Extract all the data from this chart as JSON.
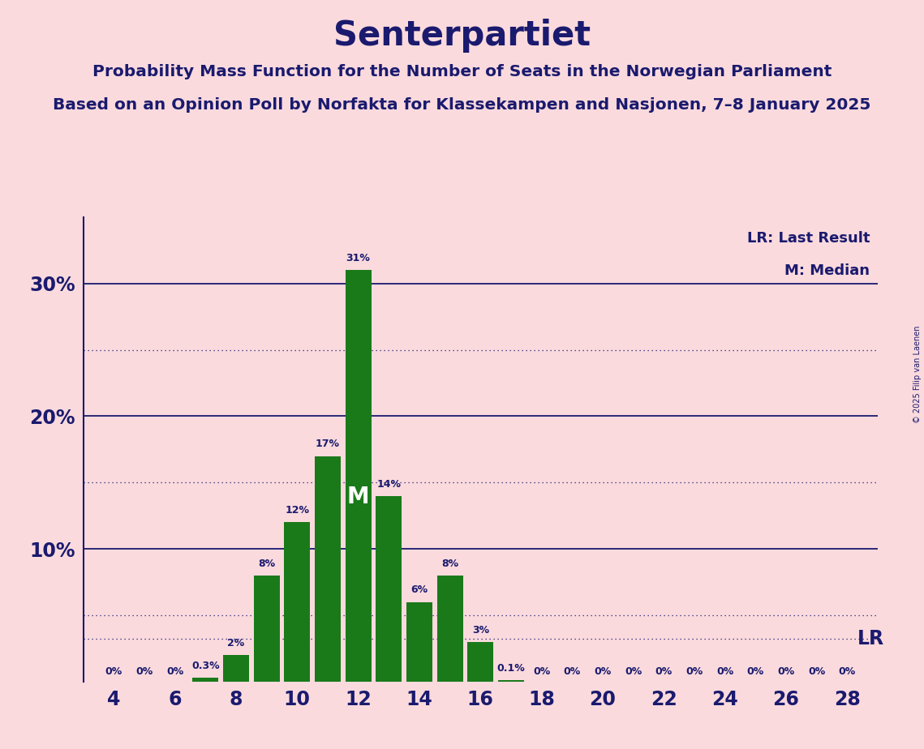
{
  "title": "Senterpartiet",
  "subtitle1": "Probability Mass Function for the Number of Seats in the Norwegian Parliament",
  "subtitle2": "Based on an Opinion Poll by Norfakta for Klassekampen and Nasjonen, 7–8 January 2025",
  "copyright": "© 2025 Filip van Laenen",
  "legend_lr": "LR: Last Result",
  "legend_m": "M: Median",
  "background_color": "#fadadd",
  "bar_color": "#1a7a1a",
  "text_color": "#1a1a6e",
  "seats": [
    4,
    5,
    6,
    7,
    8,
    9,
    10,
    11,
    12,
    13,
    14,
    15,
    16,
    17,
    18,
    19,
    20,
    21,
    22,
    23,
    24,
    25,
    26,
    27,
    28
  ],
  "probabilities": [
    0.0,
    0.0,
    0.0,
    0.3,
    2.0,
    8.0,
    12.0,
    17.0,
    31.0,
    14.0,
    6.0,
    8.0,
    3.0,
    0.1,
    0.0,
    0.0,
    0.0,
    0.0,
    0.0,
    0.0,
    0.0,
    0.0,
    0.0,
    0.0,
    0.0
  ],
  "prob_labels": [
    "0%",
    "0%",
    "0%",
    "0.3%",
    "2%",
    "8%",
    "12%",
    "17%",
    "31%",
    "14%",
    "6%",
    "8%",
    "3%",
    "0.1%",
    "0%",
    "0%",
    "0%",
    "0%",
    "0%",
    "0%",
    "0%",
    "0%",
    "0%",
    "0%",
    "0%"
  ],
  "median_seat": 12,
  "lr_seat": 15,
  "lr_y": 3.2,
  "xlim": [
    3,
    29
  ],
  "ylim": [
    0,
    35
  ],
  "solid_yticks": [
    10,
    20,
    30
  ],
  "dotted_yticks": [
    5,
    15,
    25
  ],
  "xticks": [
    4,
    6,
    8,
    10,
    12,
    14,
    16,
    18,
    20,
    22,
    24,
    26,
    28
  ]
}
